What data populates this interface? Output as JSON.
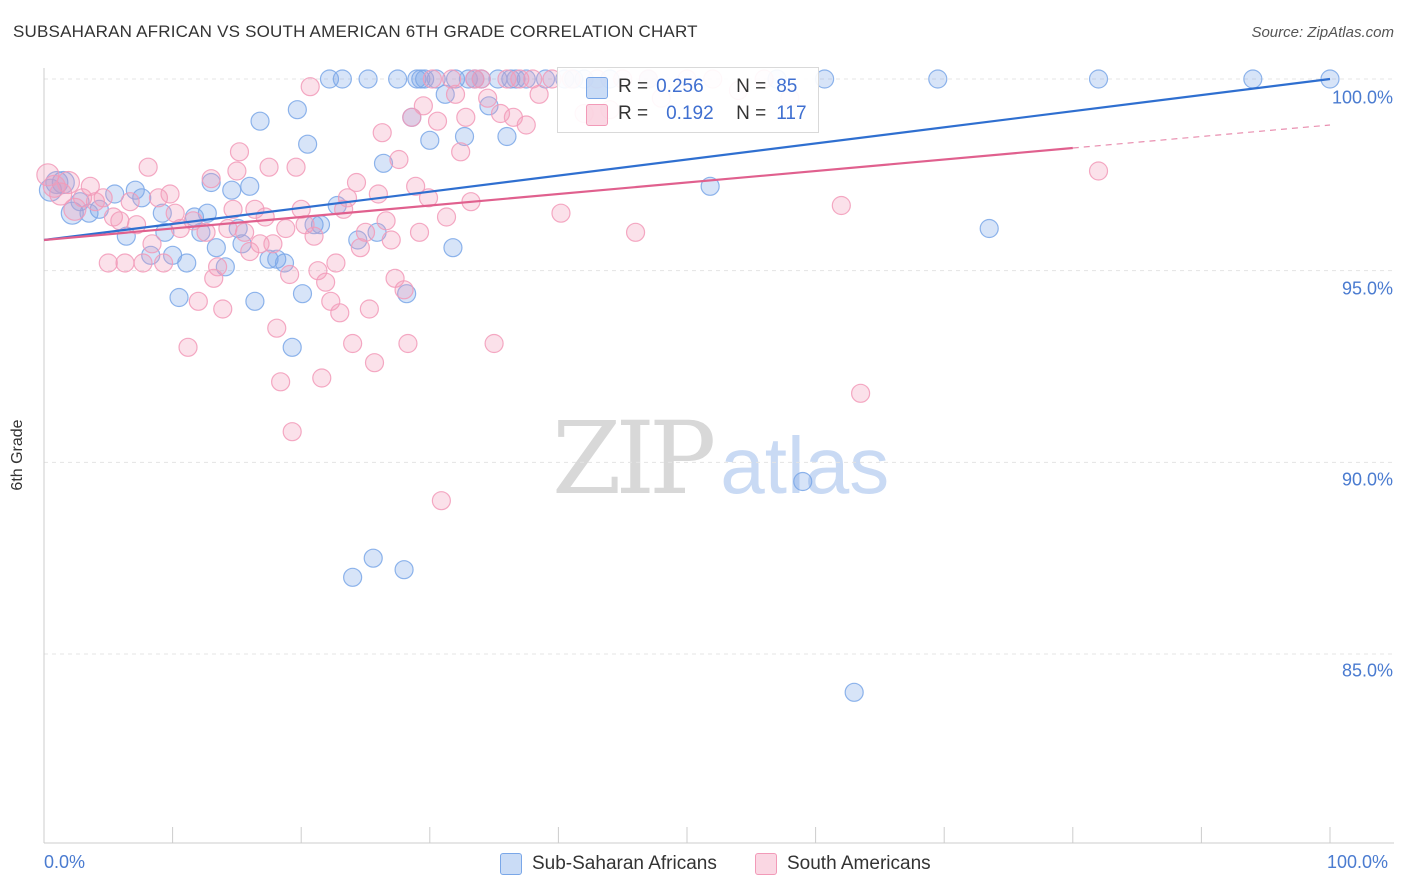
{
  "header": {
    "title": "SUBSAHARAN AFRICAN VS SOUTH AMERICAN 6TH GRADE CORRELATION CHART",
    "source": "Source: ZipAtlas.com"
  },
  "watermark": {
    "zip": "ZIP",
    "atlas": "atlas"
  },
  "legend": {
    "r_label": "R =",
    "n_label": "N =",
    "rows": [
      {
        "r": "0.256",
        "n": "85",
        "color": "#7aa7e8"
      },
      {
        "r": "0.192",
        "n": "117",
        "color": "#f29ab8"
      }
    ]
  },
  "chart_data": {
    "type": "scatter",
    "title": "SUBSAHARAN AFRICAN VS SOUTH AMERICAN 6TH GRADE CORRELATION CHART",
    "ylabel": "6th Grade",
    "xlabel": "",
    "x_tick_labels": [
      "0.0%",
      "100.0%"
    ],
    "y_tick_labels": [
      "100.0%",
      "95.0%",
      "90.0%",
      "85.0%"
    ],
    "xlim": [
      0,
      100
    ],
    "ylim": [
      80.5,
      100.4
    ],
    "grid": true,
    "legend_position": "bottom",
    "series": [
      {
        "name": "Sub-Saharan Africans",
        "color": "#7aa7e8",
        "line_color": "#2f6fd0",
        "R": 0.256,
        "N": 85,
        "trend": {
          "x": [
            0,
            100
          ],
          "y": [
            95.8,
            100.0
          ]
        },
        "points": [
          [
            0.5,
            97.1
          ],
          [
            1.0,
            97.3
          ],
          [
            1.5,
            97.3
          ],
          [
            2.2,
            96.5
          ],
          [
            2.8,
            96.8
          ],
          [
            3.5,
            96.5
          ],
          [
            4.3,
            96.6
          ],
          [
            5.5,
            97.0
          ],
          [
            6.4,
            95.9
          ],
          [
            7.1,
            97.1
          ],
          [
            7.6,
            96.9
          ],
          [
            8.3,
            95.4
          ],
          [
            9.2,
            96.5
          ],
          [
            9.4,
            96.0
          ],
          [
            10.0,
            95.4
          ],
          [
            10.5,
            94.3
          ],
          [
            11.1,
            95.2
          ],
          [
            11.7,
            96.4
          ],
          [
            12.2,
            96.0
          ],
          [
            12.7,
            96.5
          ],
          [
            13.0,
            97.3
          ],
          [
            13.4,
            95.6
          ],
          [
            14.1,
            95.1
          ],
          [
            14.6,
            97.1
          ],
          [
            15.1,
            96.1
          ],
          [
            15.4,
            95.7
          ],
          [
            16.0,
            97.2
          ],
          [
            16.4,
            94.2
          ],
          [
            16.8,
            98.9
          ],
          [
            17.5,
            95.3
          ],
          [
            18.1,
            95.3
          ],
          [
            18.7,
            95.2
          ],
          [
            19.3,
            93.0
          ],
          [
            19.7,
            99.2
          ],
          [
            20.1,
            94.4
          ],
          [
            20.5,
            98.3
          ],
          [
            21.0,
            96.2
          ],
          [
            21.5,
            96.2
          ],
          [
            22.2,
            100.0
          ],
          [
            22.8,
            96.7
          ],
          [
            23.2,
            100.0
          ],
          [
            24.0,
            87.0
          ],
          [
            24.4,
            95.8
          ],
          [
            25.2,
            100.0
          ],
          [
            25.6,
            87.5
          ],
          [
            25.9,
            96.0
          ],
          [
            26.4,
            97.8
          ],
          [
            27.5,
            100.0
          ],
          [
            28.0,
            87.2
          ],
          [
            28.2,
            94.4
          ],
          [
            28.6,
            99.0
          ],
          [
            29.0,
            100.0
          ],
          [
            29.3,
            100.0
          ],
          [
            29.6,
            100.0
          ],
          [
            30.0,
            98.4
          ],
          [
            30.5,
            100.0
          ],
          [
            31.2,
            99.6
          ],
          [
            31.8,
            95.6
          ],
          [
            32.0,
            100.0
          ],
          [
            32.7,
            98.5
          ],
          [
            33.0,
            100.0
          ],
          [
            33.5,
            100.0
          ],
          [
            34.0,
            100.0
          ],
          [
            34.6,
            99.3
          ],
          [
            35.3,
            100.0
          ],
          [
            36.0,
            98.5
          ],
          [
            36.3,
            100.0
          ],
          [
            36.7,
            100.0
          ],
          [
            37.5,
            100.0
          ],
          [
            39.0,
            100.0
          ],
          [
            40.5,
            100.0
          ],
          [
            41.2,
            100.0
          ],
          [
            42.0,
            100.0
          ],
          [
            44.0,
            100.0
          ],
          [
            47.0,
            100.0
          ],
          [
            51.8,
            97.2
          ],
          [
            57.0,
            100.0
          ],
          [
            59.0,
            89.5
          ],
          [
            60.7,
            100.0
          ],
          [
            63.0,
            84.0
          ],
          [
            69.5,
            100.0
          ],
          [
            73.5,
            96.1
          ],
          [
            82.0,
            100.0
          ],
          [
            94.0,
            100.0
          ],
          [
            100.0,
            100.0
          ]
        ]
      },
      {
        "name": "South Americans",
        "color": "#f29ab8",
        "line_color": "#e0608e",
        "R": 0.192,
        "N": 117,
        "trend": {
          "x": [
            0,
            80
          ],
          "y": [
            95.8,
            98.2
          ]
        },
        "trend_dashed": {
          "x": [
            80,
            100
          ],
          "y": [
            98.2,
            98.8
          ]
        },
        "points": [
          [
            0.3,
            97.5
          ],
          [
            0.8,
            97.2
          ],
          [
            1.3,
            97.0
          ],
          [
            1.9,
            97.3
          ],
          [
            2.4,
            96.6
          ],
          [
            3.0,
            96.9
          ],
          [
            3.6,
            97.2
          ],
          [
            4.0,
            96.8
          ],
          [
            4.6,
            96.9
          ],
          [
            5.0,
            95.2
          ],
          [
            5.4,
            96.4
          ],
          [
            5.9,
            96.3
          ],
          [
            6.3,
            95.2
          ],
          [
            6.7,
            96.8
          ],
          [
            7.2,
            96.2
          ],
          [
            7.7,
            95.2
          ],
          [
            8.1,
            97.7
          ],
          [
            8.4,
            95.7
          ],
          [
            8.9,
            96.9
          ],
          [
            9.3,
            95.2
          ],
          [
            9.8,
            97.0
          ],
          [
            10.2,
            96.5
          ],
          [
            10.6,
            96.1
          ],
          [
            11.2,
            93.0
          ],
          [
            11.6,
            96.3
          ],
          [
            12.0,
            94.2
          ],
          [
            12.6,
            96.0
          ],
          [
            13.0,
            97.4
          ],
          [
            13.2,
            94.8
          ],
          [
            13.5,
            95.1
          ],
          [
            13.9,
            94.0
          ],
          [
            14.3,
            96.1
          ],
          [
            14.7,
            96.6
          ],
          [
            15.0,
            97.6
          ],
          [
            15.2,
            98.1
          ],
          [
            15.6,
            96.0
          ],
          [
            16.0,
            95.5
          ],
          [
            16.4,
            96.6
          ],
          [
            16.8,
            95.7
          ],
          [
            17.2,
            96.4
          ],
          [
            17.5,
            97.7
          ],
          [
            17.8,
            95.7
          ],
          [
            18.1,
            93.5
          ],
          [
            18.4,
            92.1
          ],
          [
            18.8,
            96.1
          ],
          [
            19.1,
            94.9
          ],
          [
            19.3,
            90.8
          ],
          [
            19.6,
            97.7
          ],
          [
            20.0,
            96.6
          ],
          [
            20.3,
            96.2
          ],
          [
            20.7,
            99.8
          ],
          [
            21.0,
            95.9
          ],
          [
            21.3,
            95.0
          ],
          [
            21.6,
            92.2
          ],
          [
            21.9,
            94.7
          ],
          [
            22.3,
            94.2
          ],
          [
            22.7,
            95.2
          ],
          [
            23.0,
            93.9
          ],
          [
            23.3,
            96.6
          ],
          [
            23.6,
            96.9
          ],
          [
            24.0,
            93.1
          ],
          [
            24.3,
            97.3
          ],
          [
            24.6,
            95.6
          ],
          [
            25.0,
            96.0
          ],
          [
            25.3,
            94.0
          ],
          [
            25.7,
            92.6
          ],
          [
            26.0,
            97.0
          ],
          [
            26.3,
            98.6
          ],
          [
            26.6,
            96.3
          ],
          [
            27.0,
            95.8
          ],
          [
            27.3,
            94.8
          ],
          [
            27.6,
            97.9
          ],
          [
            28.0,
            94.5
          ],
          [
            28.3,
            93.1
          ],
          [
            28.6,
            99.0
          ],
          [
            28.9,
            97.2
          ],
          [
            29.2,
            96.0
          ],
          [
            29.5,
            99.3
          ],
          [
            29.9,
            96.9
          ],
          [
            30.2,
            100.0
          ],
          [
            30.6,
            98.9
          ],
          [
            30.9,
            89.0
          ],
          [
            31.3,
            96.4
          ],
          [
            31.7,
            100.0
          ],
          [
            32.0,
            99.6
          ],
          [
            32.4,
            98.1
          ],
          [
            32.8,
            99.0
          ],
          [
            33.2,
            96.8
          ],
          [
            33.5,
            100.0
          ],
          [
            34.0,
            100.0
          ],
          [
            34.5,
            99.5
          ],
          [
            35.0,
            93.1
          ],
          [
            35.5,
            99.1
          ],
          [
            36.0,
            100.0
          ],
          [
            36.5,
            99.0
          ],
          [
            37.0,
            100.0
          ],
          [
            37.5,
            98.8
          ],
          [
            38.0,
            100.0
          ],
          [
            38.5,
            99.6
          ],
          [
            39.5,
            100.0
          ],
          [
            40.2,
            96.5
          ],
          [
            41.0,
            100.0
          ],
          [
            42.0,
            99.1
          ],
          [
            43.0,
            100.0
          ],
          [
            44.0,
            99.2
          ],
          [
            45.0,
            100.0
          ],
          [
            46.0,
            96.0
          ],
          [
            47.0,
            100.0
          ],
          [
            48.0,
            99.5
          ],
          [
            50.0,
            100.0
          ],
          [
            52.0,
            100.0
          ],
          [
            54.0,
            99.7
          ],
          [
            56.0,
            100.0
          ],
          [
            58.0,
            99.5
          ],
          [
            62.0,
            96.7
          ],
          [
            63.5,
            91.8
          ],
          [
            82.0,
            97.6
          ]
        ]
      }
    ]
  }
}
